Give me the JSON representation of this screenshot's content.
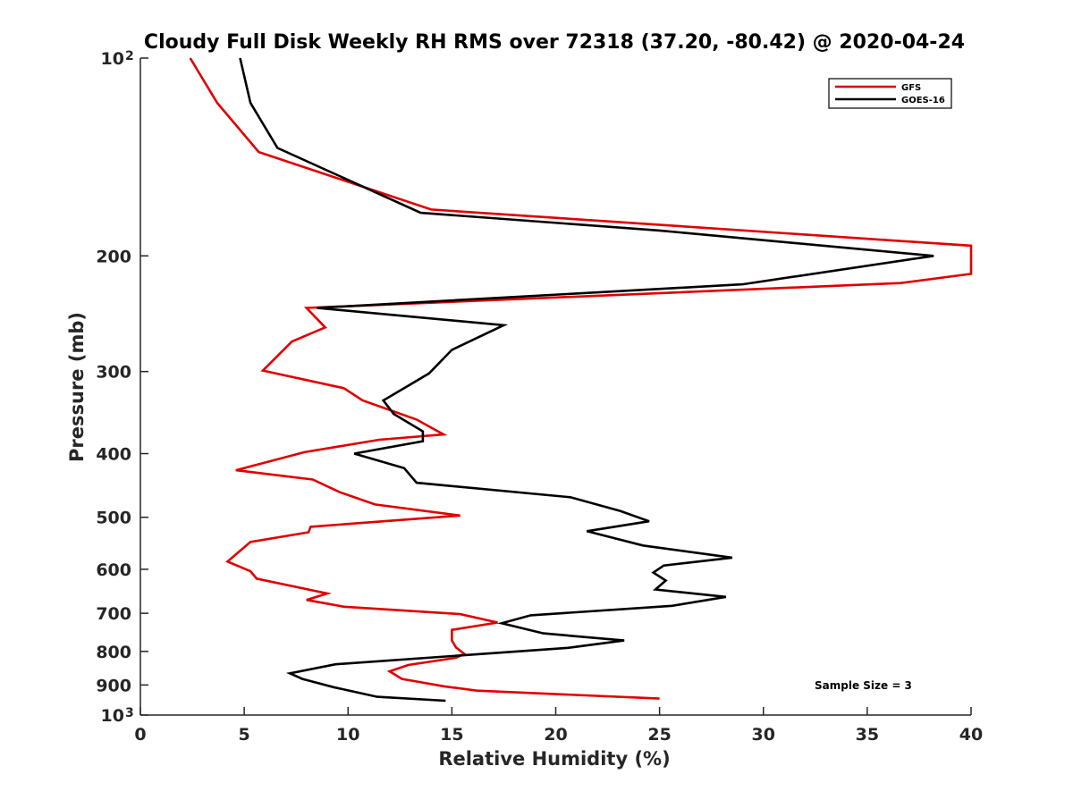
{
  "chart_data": {
    "type": "line",
    "title": "Cloudy Full Disk Weekly RH RMS over 72318 (37.20, -80.42) @ 2020-04-24",
    "xlabel": "Relative Humidity (%)",
    "ylabel": "Pressure (mb)",
    "xlim": [
      0,
      40
    ],
    "ylim": [
      100,
      1000
    ],
    "yscale": "log",
    "y_reversed": true,
    "grid": false,
    "legend_position": "top-right",
    "x_ticks": [
      {
        "value": 0,
        "label": "0"
      },
      {
        "value": 5,
        "label": "5"
      },
      {
        "value": 10,
        "label": "10"
      },
      {
        "value": 15,
        "label": "15"
      },
      {
        "value": 20,
        "label": "20"
      },
      {
        "value": 25,
        "label": "25"
      },
      {
        "value": 30,
        "label": "30"
      },
      {
        "value": 35,
        "label": "35"
      },
      {
        "value": 40,
        "label": "40"
      }
    ],
    "y_ticks": [
      {
        "value": 100,
        "label": "10",
        "exp": "2"
      },
      {
        "value": 200,
        "label": "200"
      },
      {
        "value": 300,
        "label": "300"
      },
      {
        "value": 400,
        "label": "400"
      },
      {
        "value": 500,
        "label": "500"
      },
      {
        "value": 600,
        "label": "600"
      },
      {
        "value": 700,
        "label": "700"
      },
      {
        "value": 800,
        "label": "800"
      },
      {
        "value": 900,
        "label": "900"
      },
      {
        "value": 1000,
        "label": "10",
        "exp": "3"
      }
    ],
    "series": [
      {
        "name": "GFS",
        "color": "#e00000",
        "points": [
          [
            2.4,
            100
          ],
          [
            3.7,
            117
          ],
          [
            5.7,
            139
          ],
          [
            14.0,
            170
          ],
          [
            40.0,
            193
          ],
          [
            40.0,
            213
          ],
          [
            36.6,
            220
          ],
          [
            8.0,
            240
          ],
          [
            8.9,
            257
          ],
          [
            7.3,
            270
          ],
          [
            5.9,
            299
          ],
          [
            9.8,
            318
          ],
          [
            10.7,
            332
          ],
          [
            13.3,
            355
          ],
          [
            14.6,
            374
          ],
          [
            11.5,
            381
          ],
          [
            7.9,
            398
          ],
          [
            4.6,
            424
          ],
          [
            8.3,
            438
          ],
          [
            9.6,
            458
          ],
          [
            11.3,
            478
          ],
          [
            15.4,
            497
          ],
          [
            11.0,
            509
          ],
          [
            8.2,
            517
          ],
          [
            8.1,
            527
          ],
          [
            5.3,
            545
          ],
          [
            4.2,
            584
          ],
          [
            5.3,
            604
          ],
          [
            5.6,
            620
          ],
          [
            9.0,
            653
          ],
          [
            8.0,
            668
          ],
          [
            9.8,
            684
          ],
          [
            15.4,
            702
          ],
          [
            17.2,
            723
          ],
          [
            15.0,
            742
          ],
          [
            15.0,
            755
          ],
          [
            15.0,
            770
          ],
          [
            15.2,
            789
          ],
          [
            15.6,
            807
          ],
          [
            15.2,
            818
          ],
          [
            12.9,
            839
          ],
          [
            12.0,
            858
          ],
          [
            12.6,
            881
          ],
          [
            14.6,
            904
          ],
          [
            16.2,
            918
          ],
          [
            25.0,
            944
          ]
        ]
      },
      {
        "name": "GOES-16",
        "color": "#000000",
        "points": [
          [
            4.8,
            100
          ],
          [
            5.3,
            117
          ],
          [
            6.6,
            137
          ],
          [
            13.5,
            172
          ],
          [
            25.0,
            183
          ],
          [
            38.2,
            200
          ],
          [
            29.0,
            221
          ],
          [
            8.5,
            240
          ],
          [
            17.5,
            255
          ],
          [
            15.0,
            278
          ],
          [
            13.9,
            302
          ],
          [
            12.7,
            318
          ],
          [
            11.7,
            332
          ],
          [
            12.2,
            348
          ],
          [
            13.6,
            370
          ],
          [
            13.6,
            383
          ],
          [
            10.3,
            400
          ],
          [
            12.7,
            421
          ],
          [
            13.3,
            443
          ],
          [
            20.7,
            466
          ],
          [
            23.1,
            489
          ],
          [
            24.5,
            507
          ],
          [
            21.5,
            525
          ],
          [
            24.2,
            552
          ],
          [
            28.5,
            576
          ],
          [
            25.2,
            592
          ],
          [
            24.7,
            607
          ],
          [
            25.3,
            624
          ],
          [
            24.8,
            644
          ],
          [
            28.2,
            661
          ],
          [
            25.6,
            682
          ],
          [
            18.8,
            705
          ],
          [
            17.4,
            725
          ],
          [
            19.4,
            751
          ],
          [
            23.3,
            770
          ],
          [
            20.6,
            790
          ],
          [
            9.4,
            837
          ],
          [
            7.2,
            864
          ],
          [
            7.8,
            881
          ],
          [
            9.3,
            907
          ],
          [
            11.4,
            938
          ],
          [
            14.7,
            951
          ]
        ]
      }
    ],
    "annotations": [
      "Sample Size = 3"
    ]
  }
}
